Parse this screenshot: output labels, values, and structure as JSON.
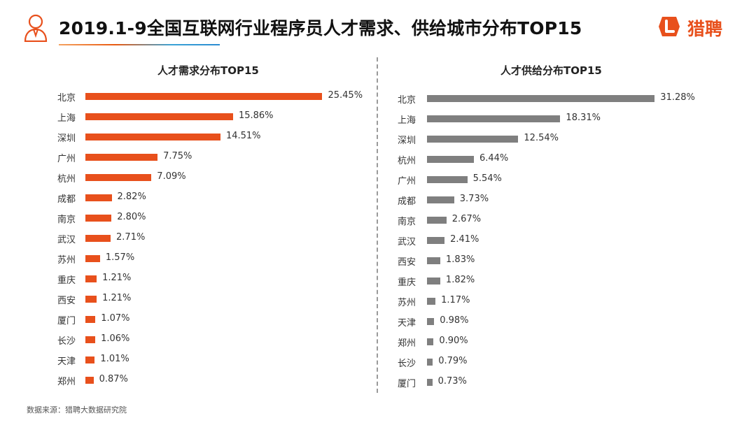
{
  "header": {
    "title": "2019.1-9全国互联网行业程序员人才需求、供给城市分布TOP15",
    "brand_name": "猎聘"
  },
  "colors": {
    "demand_bar": "#e8501c",
    "supply_bar": "#7f7f7f",
    "brand": "#e8501c"
  },
  "icons": {
    "person": "person-icon",
    "brand_logo": "liepin-logo-icon"
  },
  "footer": {
    "source": "数据来源：猎聘大数据研究院"
  },
  "chart_data": [
    {
      "type": "bar",
      "orientation": "horizontal",
      "title": "人才需求分布TOP15",
      "categories": [
        "北京",
        "上海",
        "深圳",
        "广州",
        "杭州",
        "成都",
        "南京",
        "武汉",
        "苏州",
        "重庆",
        "西安",
        "厦门",
        "长沙",
        "天津",
        "郑州"
      ],
      "values": [
        25.45,
        15.86,
        14.51,
        7.75,
        7.09,
        2.82,
        2.8,
        2.71,
        1.57,
        1.21,
        1.21,
        1.07,
        1.06,
        1.01,
        0.87
      ],
      "value_labels": [
        "25.45%",
        "15.86%",
        "14.51%",
        "7.75%",
        "7.09%",
        "2.82%",
        "2.80%",
        "2.71%",
        "1.57%",
        "1.21%",
        "1.21%",
        "1.07%",
        "1.06%",
        "1.01%",
        "0.87%"
      ],
      "color": "#e8501c"
    },
    {
      "type": "bar",
      "orientation": "horizontal",
      "title": "人才供给分布TOP15",
      "categories": [
        "北京",
        "上海",
        "深圳",
        "杭州",
        "广州",
        "成都",
        "南京",
        "武汉",
        "西安",
        "重庆",
        "苏州",
        "天津",
        "郑州",
        "长沙",
        "厦门"
      ],
      "values": [
        31.28,
        18.31,
        12.54,
        6.44,
        5.54,
        3.73,
        2.67,
        2.41,
        1.83,
        1.82,
        1.17,
        0.98,
        0.9,
        0.79,
        0.73
      ],
      "value_labels": [
        "31.28%",
        "18.31%",
        "12.54%",
        "6.44%",
        "5.54%",
        "3.73%",
        "2.67%",
        "2.41%",
        "1.83%",
        "1.82%",
        "1.17%",
        "0.98%",
        "0.90%",
        "0.79%",
        "0.73%"
      ],
      "color": "#7f7f7f"
    }
  ]
}
